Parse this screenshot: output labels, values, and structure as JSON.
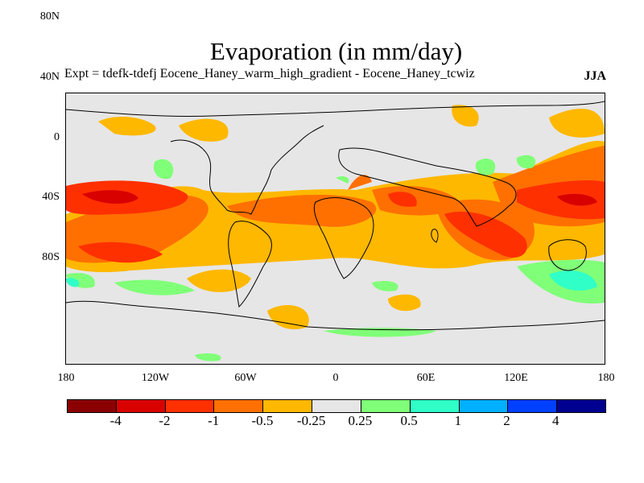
{
  "title": "Evaporation (in mm/day)",
  "subtitle": "Expt = tdefk-tdefj Eocene_Haney_warm_high_gradient - Eocene_Haney_tcwiz",
  "season": "JJA",
  "map": {
    "background_color": "#e6e6e6",
    "lat_labels": [
      "80N",
      "40N",
      "0",
      "40S",
      "80S"
    ],
    "lon_labels": [
      "180",
      "120W",
      "60W",
      "0",
      "60E",
      "120E",
      "180"
    ]
  },
  "colorbar": {
    "colors": [
      "#8b0000",
      "#d90000",
      "#ff3000",
      "#ff7000",
      "#ffb800",
      "#e6e6e6",
      "#80ff78",
      "#30ffc8",
      "#00b0ff",
      "#0040ff",
      "#000090"
    ],
    "labels": [
      "-4",
      "-2",
      "-1",
      "-0.5",
      "-0.25",
      "0.25",
      "0.5",
      "1",
      "2",
      "4"
    ]
  }
}
